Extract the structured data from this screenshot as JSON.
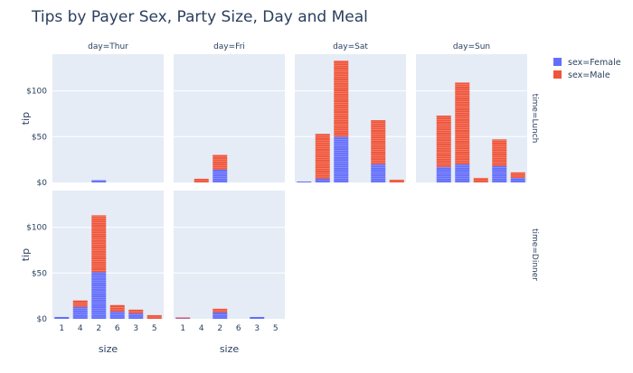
{
  "chart_data": {
    "type": "bar",
    "title": "Tips by Payer Sex, Party Size, Day and Meal",
    "xlabel": "size",
    "ylabel": "tip",
    "ylim": [
      0,
      140
    ],
    "ytick_values": [
      0,
      50,
      100
    ],
    "ytick_labels": [
      "$0",
      "$50",
      "$100"
    ],
    "categories": [
      "1",
      "4",
      "2",
      "6",
      "3",
      "5"
    ],
    "day_labels": [
      "day=Thur",
      "day=Fri",
      "day=Sat",
      "day=Sun"
    ],
    "row_labels": [
      "time=Lunch",
      "time=Dinner"
    ],
    "legend": [
      {
        "name": "sex=Female",
        "color": "#636efa"
      },
      {
        "name": "sex=Male",
        "color": "#ef553b"
      }
    ],
    "panels": [
      {
        "day": "Thur",
        "time": "Lunch",
        "female": [
          0,
          0,
          2.5,
          0,
          0,
          0
        ],
        "male": [
          0,
          0,
          0,
          0,
          0,
          0
        ]
      },
      {
        "day": "Fri",
        "time": "Lunch",
        "female": [
          0,
          0,
          14,
          0,
          0,
          0
        ],
        "male": [
          0,
          4,
          16,
          0,
          0,
          0
        ]
      },
      {
        "day": "Sat",
        "time": "Lunch",
        "female": [
          1,
          4,
          50,
          0,
          20,
          0
        ],
        "male": [
          0,
          49,
          83,
          0,
          48,
          3
        ]
      },
      {
        "day": "Sun",
        "time": "Lunch",
        "female": [
          0,
          17,
          20,
          0,
          18,
          5
        ],
        "male": [
          0,
          56,
          89,
          5,
          29,
          6
        ]
      },
      {
        "day": "Thur",
        "time": "Dinner",
        "female": [
          2,
          13,
          51,
          8,
          6,
          0
        ],
        "male": [
          0,
          7,
          62,
          7,
          4,
          4
        ]
      },
      {
        "day": "Fri",
        "time": "Dinner",
        "female": [
          0.5,
          0,
          7,
          0,
          2,
          0
        ],
        "male": [
          1,
          0,
          4,
          0,
          0,
          0
        ]
      }
    ]
  }
}
